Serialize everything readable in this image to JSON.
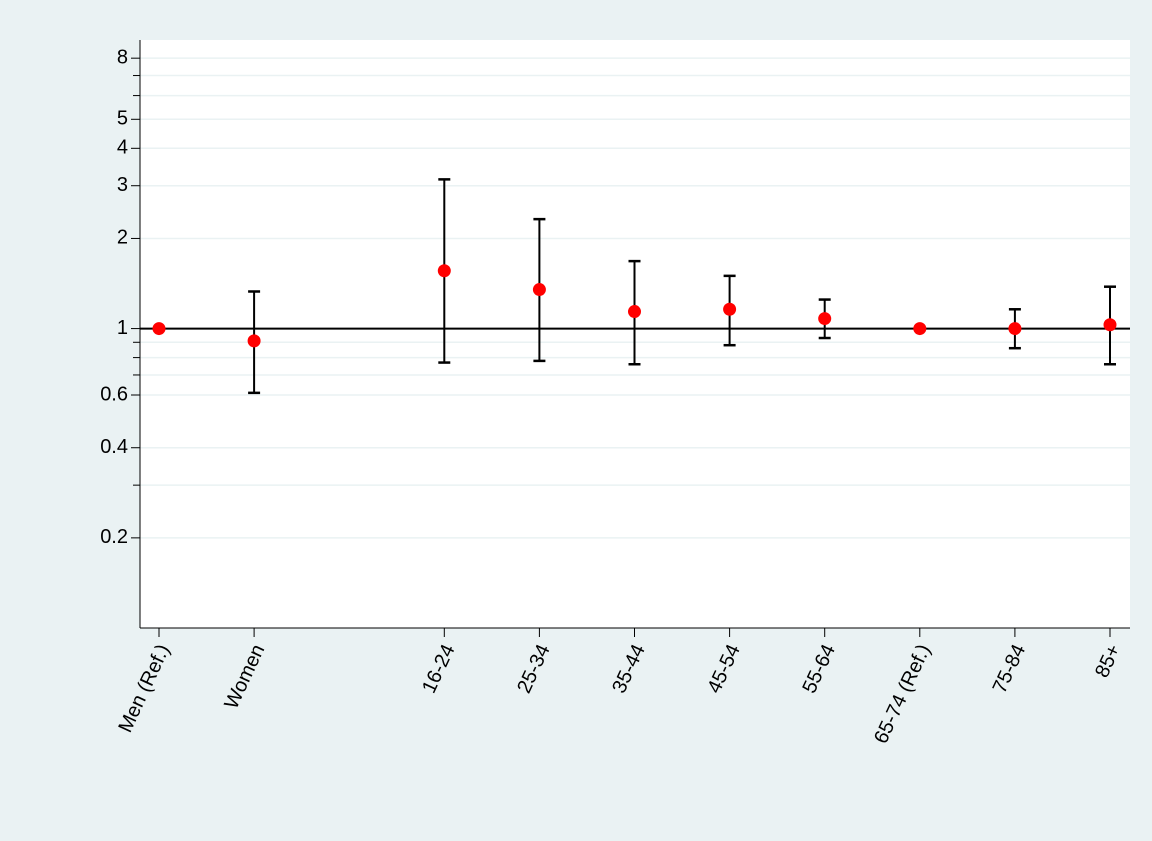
{
  "chart_data": {
    "type": "errorbar",
    "categories": [
      "Men (Ref.)",
      "Women",
      null,
      "16-24",
      "25-34",
      "35-44",
      "45-54",
      "55-64",
      "65-74 (Ref.)",
      "75-84",
      "85+"
    ],
    "values": [
      1,
      0.91,
      null,
      1.56,
      1.35,
      1.14,
      1.16,
      1.08,
      1,
      1.0,
      1.03
    ],
    "lower": [
      null,
      0.61,
      null,
      0.77,
      0.78,
      0.76,
      0.88,
      0.93,
      null,
      0.86,
      0.76
    ],
    "upper": [
      null,
      1.33,
      null,
      3.15,
      2.32,
      1.68,
      1.5,
      1.25,
      null,
      1.16,
      1.38
    ],
    "color": "#ff0000",
    "bar_color": "#000000",
    "ylim": [
      0.1,
      9.2
    ],
    "log_y": true,
    "yticks": [
      0.2,
      0.4,
      0.6,
      1,
      2,
      3,
      4,
      5,
      8
    ],
    "minor_yticks": [
      0.3,
      0.7,
      0.8,
      0.9,
      6,
      7
    ],
    "refline": 1,
    "grid": true
  }
}
